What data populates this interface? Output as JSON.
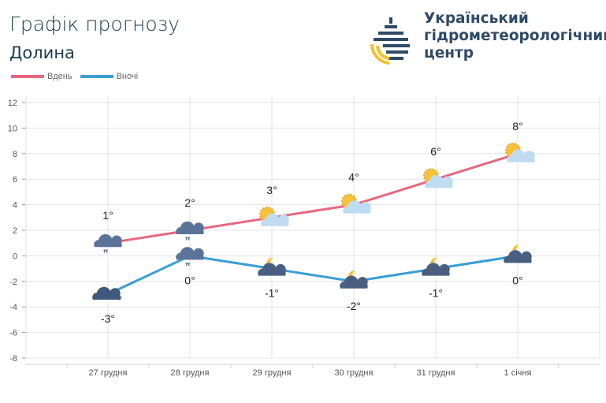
{
  "header": {
    "title": "Графік прогнозу",
    "city": "Долина",
    "org_lines": [
      "Український",
      "гідрометеорологічний",
      "центр"
    ]
  },
  "colors": {
    "day": "#e8677f",
    "night": "#3a9ed6",
    "grid": "#e3e3e3"
  },
  "chart_data": {
    "type": "line",
    "categories": [
      "27 грудня",
      "28 грудня",
      "29 грудня",
      "30 грудня",
      "31 грудня",
      "1 січня"
    ],
    "series": [
      {
        "name": "Вдень",
        "values": [
          1,
          2,
          3,
          4,
          6,
          8
        ],
        "labels": [
          "1°",
          "2°",
          "3°",
          "4°",
          "6°",
          "8°"
        ],
        "icons": [
          "rain-cloud-icon",
          "rain-cloud-icon",
          "sun-cloud-icon",
          "sun-cloud-icon",
          "sun-cloud-icon",
          "sun-cloud-icon"
        ]
      },
      {
        "name": "Вночі",
        "values": [
          -3,
          0,
          -1,
          -2,
          -1,
          0
        ],
        "labels": [
          "-3°",
          "0°",
          "-1°",
          "-2°",
          "-1°",
          "0°"
        ],
        "icons": [
          "snow-cloud-icon",
          "rain-cloud-icon",
          "moon-cloud-icon",
          "moon-cloud-icon",
          "moon-cloud-icon",
          "moon-cloud-icon"
        ]
      }
    ],
    "ylim": [
      -8,
      12
    ],
    "yticks": [
      "-8",
      "-6",
      "-4",
      "-2",
      "0",
      "2",
      "4",
      "6",
      "8",
      "10",
      "12"
    ],
    "grid": true,
    "legend": "top-left"
  }
}
